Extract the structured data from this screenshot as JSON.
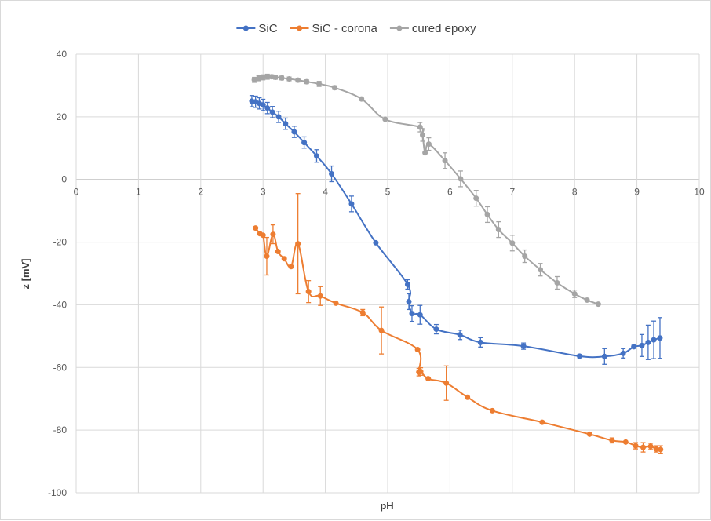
{
  "chart_data": {
    "type": "line",
    "xlabel": "pH",
    "ylabel": "z [mV]",
    "xlim": [
      0,
      10
    ],
    "ylim": [
      -100,
      40
    ],
    "x_ticks": [
      "0",
      "1",
      "2",
      "3",
      "4",
      "5",
      "6",
      "7",
      "8",
      "9",
      "10"
    ],
    "y_ticks": [
      "40",
      "20",
      "0",
      "-20",
      "-40",
      "-60",
      "-80",
      "-100"
    ],
    "grid": true,
    "legend_position": "top",
    "series": [
      {
        "name": "SiC",
        "color": "#4472c4",
        "points": [
          [
            2.82,
            25.0,
            1.8
          ],
          [
            2.88,
            24.8,
            1.8
          ],
          [
            2.94,
            24.3,
            1.8
          ],
          [
            3.0,
            23.8,
            1.8
          ],
          [
            3.07,
            22.8,
            1.8
          ],
          [
            3.15,
            21.5,
            1.8
          ],
          [
            3.25,
            20.0,
            1.8
          ],
          [
            3.36,
            17.8,
            1.8
          ],
          [
            3.5,
            15.2,
            1.8
          ],
          [
            3.66,
            11.8,
            1.8
          ],
          [
            3.86,
            7.5,
            2.0
          ],
          [
            4.1,
            1.8,
            2.5
          ],
          [
            4.42,
            -7.8,
            2.5
          ],
          [
            4.81,
            -20.2,
            0
          ],
          [
            5.32,
            -33.5,
            1.5
          ],
          [
            5.34,
            -39.0,
            2.5
          ],
          [
            5.39,
            -42.8,
            2.5
          ],
          [
            5.52,
            -43.2,
            3.0
          ],
          [
            5.78,
            -47.8,
            1.5
          ],
          [
            6.16,
            -49.6,
            1.5
          ],
          [
            6.49,
            -52.0,
            1.5
          ],
          [
            7.18,
            -53.2,
            1.0
          ],
          [
            8.08,
            -56.4,
            0.5
          ],
          [
            8.48,
            -56.5,
            2.5
          ],
          [
            8.78,
            -55.5,
            1.5
          ],
          [
            8.95,
            -53.4,
            0.5
          ],
          [
            9.08,
            -53.0,
            3.5
          ],
          [
            9.18,
            -52.0,
            5.5
          ],
          [
            9.27,
            -51.2,
            6.0
          ],
          [
            9.37,
            -50.6,
            6.5
          ]
        ]
      },
      {
        "name": "SiC - corona",
        "color": "#ed7d31",
        "points": [
          [
            2.88,
            -15.5,
            0
          ],
          [
            2.95,
            -17.3,
            0
          ],
          [
            3.0,
            -17.8,
            0
          ],
          [
            3.06,
            -24.5,
            6.0
          ],
          [
            3.16,
            -17.5,
            3.0
          ],
          [
            3.24,
            -23.0,
            0
          ],
          [
            3.34,
            -25.3,
            0
          ],
          [
            3.45,
            -27.8,
            0
          ],
          [
            3.56,
            -20.5,
            16.0
          ],
          [
            3.73,
            -35.8,
            3.5
          ],
          [
            3.92,
            -37.2,
            3.0
          ],
          [
            4.17,
            -39.5,
            0
          ],
          [
            4.6,
            -42.5,
            1.0
          ],
          [
            4.9,
            -48.2,
            7.5
          ],
          [
            5.48,
            -54.3,
            0
          ],
          [
            5.5,
            -61.5,
            1.2
          ],
          [
            5.53,
            -61.3,
            1.2
          ],
          [
            5.65,
            -63.6,
            0
          ],
          [
            5.94,
            -65.0,
            5.5
          ],
          [
            6.28,
            -69.5,
            0
          ],
          [
            6.68,
            -73.8,
            0
          ],
          [
            7.48,
            -77.5,
            0
          ],
          [
            8.24,
            -81.3,
            0
          ],
          [
            8.6,
            -83.3,
            0.8
          ],
          [
            8.82,
            -83.8,
            0
          ],
          [
            8.98,
            -85.0,
            1.0
          ],
          [
            9.1,
            -85.5,
            1.5
          ],
          [
            9.22,
            -85.2,
            1.0
          ],
          [
            9.31,
            -86.0,
            1.0
          ],
          [
            9.38,
            -86.2,
            1.2
          ]
        ]
      },
      {
        "name": "cured epoxy",
        "color": "#a5a5a5",
        "points": [
          [
            2.86,
            31.8,
            0.8
          ],
          [
            2.93,
            32.3,
            0.8
          ],
          [
            3.0,
            32.6,
            0.8
          ],
          [
            3.07,
            32.8,
            0.8
          ],
          [
            3.14,
            32.8,
            0.6
          ],
          [
            3.2,
            32.6,
            0.6
          ],
          [
            3.3,
            32.4,
            0.6
          ],
          [
            3.42,
            32.1,
            0.6
          ],
          [
            3.56,
            31.7,
            0.6
          ],
          [
            3.7,
            31.2,
            0.6
          ],
          [
            3.9,
            30.5,
            0.8
          ],
          [
            4.15,
            29.3,
            0.6
          ],
          [
            4.58,
            25.7,
            0.3
          ],
          [
            4.96,
            19.2,
            0
          ],
          [
            5.52,
            16.7,
            1.5
          ],
          [
            5.56,
            14.2,
            2.0
          ],
          [
            5.6,
            8.5,
            0
          ],
          [
            5.66,
            11.3,
            2.0
          ],
          [
            5.92,
            6.0,
            2.5
          ],
          [
            6.17,
            0.2,
            2.5
          ],
          [
            6.42,
            -6.0,
            2.5
          ],
          [
            6.6,
            -11.2,
            2.5
          ],
          [
            6.78,
            -16.0,
            2.5
          ],
          [
            7.0,
            -20.3,
            2.5
          ],
          [
            7.2,
            -24.5,
            2.0
          ],
          [
            7.45,
            -28.8,
            2.0
          ],
          [
            7.72,
            -33.0,
            2.0
          ],
          [
            8.0,
            -36.5,
            1.2
          ],
          [
            8.2,
            -38.5,
            0.5
          ],
          [
            8.38,
            -39.8,
            0
          ]
        ]
      }
    ]
  }
}
